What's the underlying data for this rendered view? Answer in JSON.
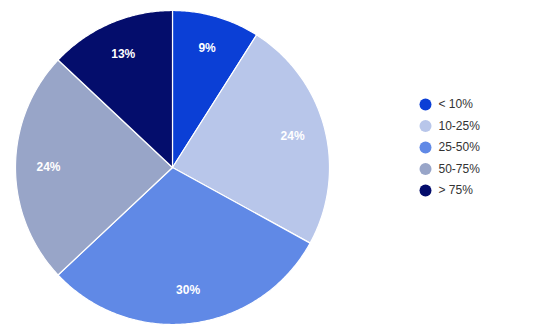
{
  "chart_data": {
    "type": "pie",
    "categories": [
      "< 10%",
      "10-25%",
      "25-50%",
      "50-75%",
      "> 75%"
    ],
    "values": [
      9,
      24,
      30,
      24,
      13
    ],
    "value_labels": [
      "9%",
      "24%",
      "30%",
      "24%",
      "13%"
    ],
    "colors": [
      "#0b3fd6",
      "#b8c6ea",
      "#6089e6",
      "#98a5c8",
      "#040d6c"
    ],
    "data_labels": true,
    "legend": "right"
  }
}
